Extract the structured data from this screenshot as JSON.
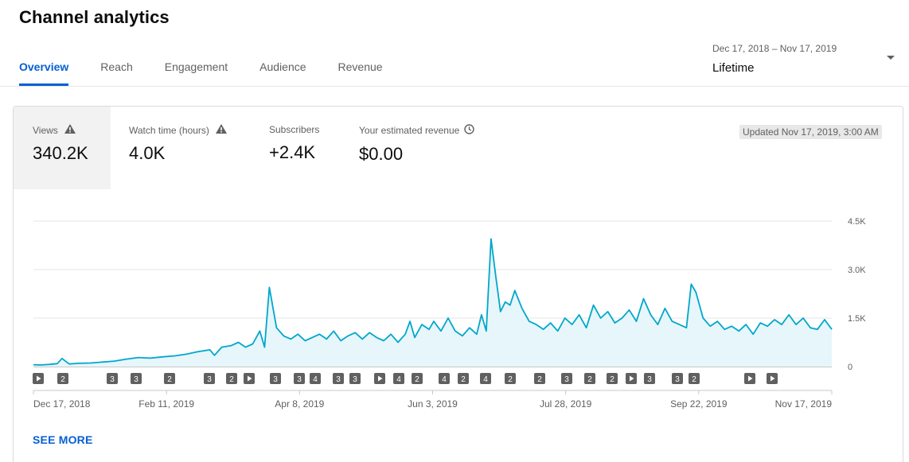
{
  "page": {
    "title": "Channel analytics"
  },
  "tabs": [
    {
      "label": "Overview",
      "active": true
    },
    {
      "label": "Reach",
      "active": false
    },
    {
      "label": "Engagement",
      "active": false
    },
    {
      "label": "Audience",
      "active": false
    },
    {
      "label": "Revenue",
      "active": false
    }
  ],
  "date_picker": {
    "range": "Dec 17, 2018 – Nov 17, 2019",
    "period": "Lifetime"
  },
  "metrics": [
    {
      "label": "Views",
      "value": "340.2K",
      "icon": "warning-icon",
      "selected": true
    },
    {
      "label": "Watch time (hours)",
      "value": "4.0K",
      "icon": "warning-icon",
      "selected": false
    },
    {
      "label": "Subscribers",
      "value": "+2.4K",
      "icon": "",
      "selected": false
    },
    {
      "label": "Your estimated revenue",
      "value": "$0.00",
      "icon": "clock-icon",
      "selected": false
    }
  ],
  "updated": "Updated Nov 17, 2019, 3:00 AM",
  "see_more": "SEE MORE",
  "colors": {
    "accent": "#065fd4",
    "line": "#00a7cc",
    "area": "#e6f6fa",
    "marker": "#606060",
    "grid": "#e5e5e5"
  },
  "video_markers": [
    "play",
    "2",
    "3",
    "3",
    "2",
    "3",
    "2",
    "play",
    "3",
    "3",
    "4",
    "3",
    "3",
    "play",
    "4",
    "2",
    "4",
    "2",
    "4",
    "2",
    "2",
    "3",
    "2",
    "2",
    "play",
    "3",
    "3",
    "2",
    "play",
    "play"
  ],
  "chart_data": {
    "type": "area",
    "title": "",
    "xlabel": "",
    "ylabel": "",
    "series": [
      {
        "name": "Views"
      }
    ],
    "x_start": "2018-12-17",
    "x_end": "2019-11-17",
    "x_ticks": [
      "Dec 17, 2018",
      "Feb 11, 2019",
      "Apr 8, 2019",
      "Jun 3, 2019",
      "Jul 28, 2019",
      "Sep 22, 2019",
      "Nov 17, 2019"
    ],
    "y_ticks": [
      "0",
      "1.5K",
      "3.0K",
      "4.5K"
    ],
    "ylim": [
      0,
      4500
    ],
    "grid": true,
    "points": [
      [
        "2018-12-17",
        60
      ],
      [
        "2018-12-20",
        50
      ],
      [
        "2018-12-24",
        70
      ],
      [
        "2018-12-27",
        90
      ],
      [
        "2018-12-29",
        250
      ],
      [
        "2019-01-01",
        80
      ],
      [
        "2019-01-05",
        100
      ],
      [
        "2019-01-10",
        110
      ],
      [
        "2019-01-15",
        140
      ],
      [
        "2019-01-20",
        170
      ],
      [
        "2019-01-25",
        230
      ],
      [
        "2019-01-30",
        280
      ],
      [
        "2019-02-04",
        260
      ],
      [
        "2019-02-09",
        300
      ],
      [
        "2019-02-14",
        330
      ],
      [
        "2019-02-19",
        380
      ],
      [
        "2019-02-24",
        460
      ],
      [
        "2019-03-01",
        520
      ],
      [
        "2019-03-03",
        350
      ],
      [
        "2019-03-06",
        600
      ],
      [
        "2019-03-10",
        650
      ],
      [
        "2019-03-13",
        750
      ],
      [
        "2019-03-16",
        600
      ],
      [
        "2019-03-19",
        700
      ],
      [
        "2019-03-22",
        1100
      ],
      [
        "2019-03-24",
        600
      ],
      [
        "2019-03-26",
        2450
      ],
      [
        "2019-03-29",
        1200
      ],
      [
        "2019-04-01",
        950
      ],
      [
        "2019-04-04",
        850
      ],
      [
        "2019-04-07",
        1000
      ],
      [
        "2019-04-10",
        800
      ],
      [
        "2019-04-13",
        900
      ],
      [
        "2019-04-16",
        1000
      ],
      [
        "2019-04-19",
        850
      ],
      [
        "2019-04-22",
        1100
      ],
      [
        "2019-04-25",
        800
      ],
      [
        "2019-04-28",
        950
      ],
      [
        "2019-05-01",
        1050
      ],
      [
        "2019-05-04",
        850
      ],
      [
        "2019-05-07",
        1050
      ],
      [
        "2019-05-10",
        900
      ],
      [
        "2019-05-13",
        800
      ],
      [
        "2019-05-16",
        1000
      ],
      [
        "2019-05-19",
        750
      ],
      [
        "2019-05-22",
        1000
      ],
      [
        "2019-05-24",
        1400
      ],
      [
        "2019-05-26",
        900
      ],
      [
        "2019-05-29",
        1300
      ],
      [
        "2019-06-01",
        1150
      ],
      [
        "2019-06-03",
        1400
      ],
      [
        "2019-06-06",
        1100
      ],
      [
        "2019-06-09",
        1500
      ],
      [
        "2019-06-12",
        1100
      ],
      [
        "2019-06-15",
        950
      ],
      [
        "2019-06-18",
        1200
      ],
      [
        "2019-06-21",
        1000
      ],
      [
        "2019-06-23",
        1600
      ],
      [
        "2019-06-25",
        1100
      ],
      [
        "2019-06-27",
        3950
      ],
      [
        "2019-06-29",
        2800
      ],
      [
        "2019-07-01",
        1700
      ],
      [
        "2019-07-03",
        2000
      ],
      [
        "2019-07-05",
        1900
      ],
      [
        "2019-07-07",
        2350
      ],
      [
        "2019-07-10",
        1800
      ],
      [
        "2019-07-13",
        1400
      ],
      [
        "2019-07-16",
        1300
      ],
      [
        "2019-07-19",
        1150
      ],
      [
        "2019-07-22",
        1350
      ],
      [
        "2019-07-25",
        1100
      ],
      [
        "2019-07-28",
        1500
      ],
      [
        "2019-07-31",
        1300
      ],
      [
        "2019-08-03",
        1600
      ],
      [
        "2019-08-06",
        1200
      ],
      [
        "2019-08-09",
        1900
      ],
      [
        "2019-08-12",
        1500
      ],
      [
        "2019-08-15",
        1700
      ],
      [
        "2019-08-18",
        1350
      ],
      [
        "2019-08-21",
        1500
      ],
      [
        "2019-08-24",
        1750
      ],
      [
        "2019-08-27",
        1400
      ],
      [
        "2019-08-30",
        2100
      ],
      [
        "2019-09-02",
        1600
      ],
      [
        "2019-09-05",
        1300
      ],
      [
        "2019-09-08",
        1800
      ],
      [
        "2019-09-11",
        1400
      ],
      [
        "2019-09-14",
        1300
      ],
      [
        "2019-09-17",
        1200
      ],
      [
        "2019-09-19",
        2550
      ],
      [
        "2019-09-21",
        2300
      ],
      [
        "2019-09-24",
        1500
      ],
      [
        "2019-09-27",
        1250
      ],
      [
        "2019-09-30",
        1400
      ],
      [
        "2019-10-03",
        1150
      ],
      [
        "2019-10-06",
        1250
      ],
      [
        "2019-10-09",
        1100
      ],
      [
        "2019-10-12",
        1300
      ],
      [
        "2019-10-15",
        1000
      ],
      [
        "2019-10-18",
        1350
      ],
      [
        "2019-10-21",
        1250
      ],
      [
        "2019-10-24",
        1450
      ],
      [
        "2019-10-27",
        1300
      ],
      [
        "2019-10-30",
        1600
      ],
      [
        "2019-11-02",
        1300
      ],
      [
        "2019-11-05",
        1500
      ],
      [
        "2019-11-08",
        1200
      ],
      [
        "2019-11-11",
        1150
      ],
      [
        "2019-11-14",
        1450
      ],
      [
        "2019-11-17",
        1150
      ]
    ]
  }
}
